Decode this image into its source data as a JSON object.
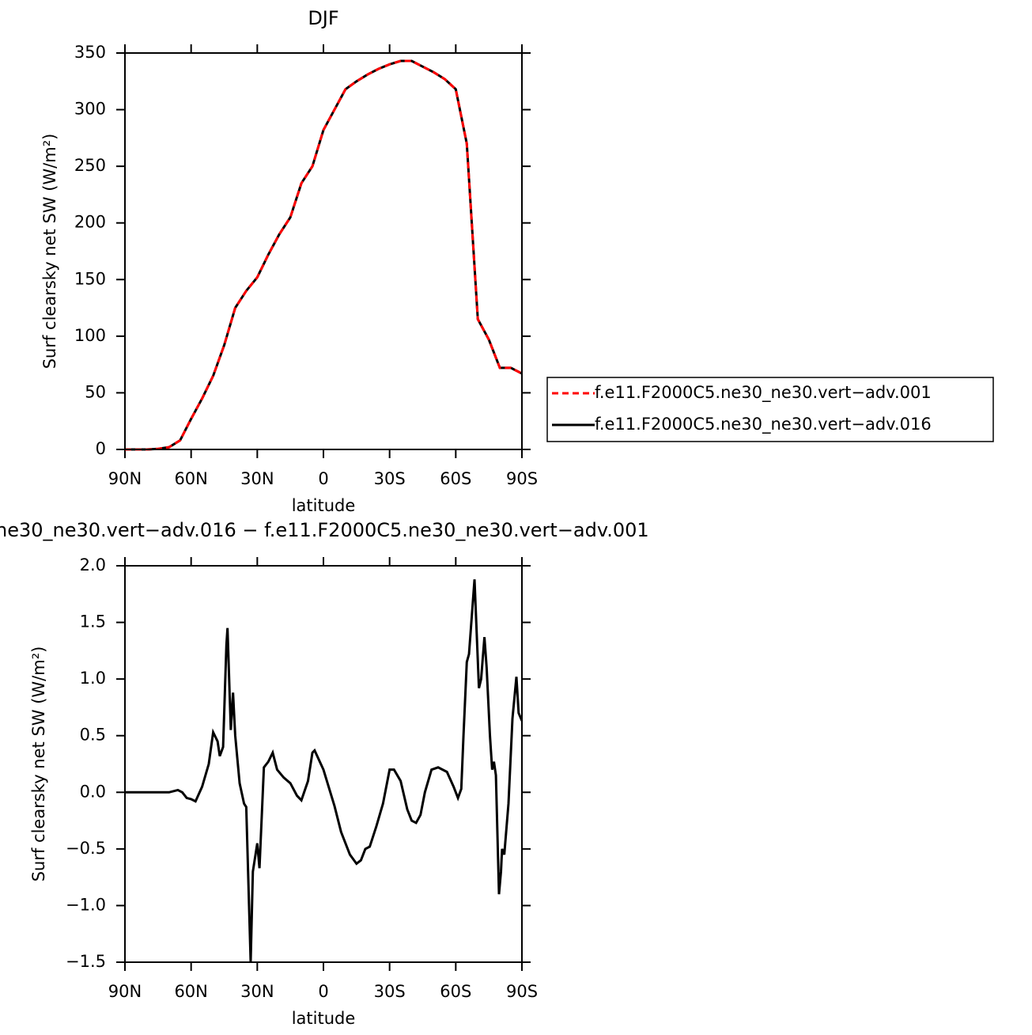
{
  "chart_data": [
    {
      "type": "line",
      "title": "DJF",
      "xlabel": "latitude",
      "ylabel": "Surf clearsky net SW (W/m²)",
      "x": [
        90,
        85,
        80,
        75,
        70,
        65,
        60,
        55,
        50,
        45,
        40,
        35,
        30,
        25,
        20,
        15,
        10,
        5,
        0,
        -5,
        -10,
        -15,
        -20,
        -25,
        -30,
        -35,
        -40,
        -45,
        -50,
        -55,
        -60,
        -65,
        -70,
        -75,
        -80,
        -85,
        -90
      ],
      "series": [
        {
          "name": "f.e11.F2000C5.ne30_ne30.vert−adv.001",
          "color": "#ff0000",
          "line_style": "dashed",
          "values": [
            0,
            0,
            0,
            0.5,
            2,
            8,
            27,
            45,
            65,
            92,
            125,
            140,
            152,
            172,
            190,
            205,
            235,
            250,
            282,
            300,
            318,
            325,
            331,
            336,
            340,
            343,
            343,
            338,
            333,
            327,
            318,
            270,
            115,
            97,
            72,
            72,
            67
          ]
        },
        {
          "name": "f.e11.F2000C5.ne30_ne30.vert−adv.016",
          "color": "#000000",
          "line_style": "solid",
          "values": [
            0,
            0,
            0,
            0.5,
            2,
            8,
            27,
            45,
            65,
            92,
            125,
            140,
            152,
            172,
            190,
            205,
            235,
            250,
            282,
            300,
            318,
            325,
            331,
            336,
            340,
            343,
            343,
            338,
            333,
            327,
            318,
            270,
            115,
            97,
            72,
            72,
            67
          ]
        }
      ],
      "xlim": [
        90,
        -90
      ],
      "ylim": [
        0,
        350
      ],
      "xticks": [
        {
          "value": 90,
          "label": "90N"
        },
        {
          "value": 60,
          "label": "60N"
        },
        {
          "value": 30,
          "label": "30N"
        },
        0,
        {
          "value": -30,
          "label": "30S"
        },
        {
          "value": -60,
          "label": "60S"
        },
        {
          "value": -90,
          "label": "90S"
        }
      ],
      "yticks": [
        0,
        50,
        100,
        150,
        200,
        250,
        300,
        350
      ],
      "legend": "right"
    },
    {
      "type": "line",
      "title": "ne30_ne30.vert−adv.016 − f.e11.F2000C5.ne30_ne30.vert−adv.001",
      "xlabel": "latitude",
      "ylabel": "Surf clearsky net SW (W/m²)",
      "x": [
        90,
        85,
        80,
        75,
        70,
        66,
        64,
        62,
        60,
        58,
        55,
        52,
        50,
        48,
        47,
        45.5,
        44,
        43.5,
        42,
        41,
        40,
        38,
        36,
        35,
        33,
        32,
        30,
        29,
        27,
        25,
        23,
        21,
        18,
        15,
        12,
        10,
        7,
        5,
        4,
        0,
        -5,
        -8,
        -12,
        -15,
        -17,
        -19,
        -21,
        -24,
        -27,
        -30,
        -32,
        -35,
        -38,
        -40,
        -42,
        -44,
        -46,
        -49,
        -52,
        -56,
        -59,
        -61,
        -62.5,
        -63.5,
        -65,
        -66,
        -68.5,
        -70.5,
        -71.5,
        -73,
        -74,
        -75.5,
        -76.5,
        -77.3,
        -78.2,
        -79.6,
        -80.5,
        -81,
        -82,
        -83.9,
        -85.7,
        -87.5,
        -88.5,
        -90
      ],
      "values": [
        0,
        0,
        0,
        0,
        0,
        0.02,
        0,
        -0.05,
        -0.06,
        -0.08,
        0.05,
        0.25,
        0.53,
        0.45,
        0.32,
        0.4,
        1.3,
        1.45,
        0.55,
        0.88,
        0.5,
        0.08,
        -0.1,
        -0.13,
        -1.5,
        -0.7,
        -0.45,
        -0.67,
        0.22,
        0.27,
        0.35,
        0.2,
        0.13,
        0.08,
        -0.03,
        -0.07,
        0.1,
        0.35,
        0.37,
        0.2,
        -0.12,
        -0.35,
        -0.55,
        -0.63,
        -0.6,
        -0.5,
        -0.48,
        -0.3,
        -0.1,
        0.2,
        0.2,
        0.1,
        -0.15,
        -0.25,
        -0.27,
        -0.2,
        0,
        0.2,
        0.22,
        0.18,
        0.05,
        -0.05,
        0.03,
        0.5,
        1.15,
        1.22,
        1.88,
        0.92,
        1.0,
        1.37,
        1.1,
        0.5,
        0.2,
        0.27,
        0.15,
        -0.9,
        -0.7,
        -0.5,
        -0.55,
        -0.1,
        0.65,
        1.02,
        0.7,
        0.63
      ],
      "color": "#000000",
      "line_style": "solid",
      "xlim": [
        90,
        -90
      ],
      "ylim": [
        -1.5,
        2.0
      ],
      "xticks": [
        {
          "value": 90,
          "label": "90N"
        },
        {
          "value": 60,
          "label": "60N"
        },
        {
          "value": 30,
          "label": "30N"
        },
        0,
        {
          "value": -30,
          "label": "30S"
        },
        {
          "value": -60,
          "label": "60S"
        },
        {
          "value": -90,
          "label": "90S"
        }
      ],
      "yticks": [
        {
          "value": -1.5,
          "label": "−1.5"
        },
        {
          "value": -1.0,
          "label": "−1.0"
        },
        {
          "value": -0.5,
          "label": "−0.5"
        },
        {
          "value": 0,
          "label": "0.0"
        },
        {
          "value": 0.5,
          "label": "0.5"
        },
        {
          "value": 1.0,
          "label": "1.0"
        },
        {
          "value": 1.5,
          "label": "1.5"
        },
        {
          "value": 2.0,
          "label": "2.0"
        }
      ]
    }
  ]
}
